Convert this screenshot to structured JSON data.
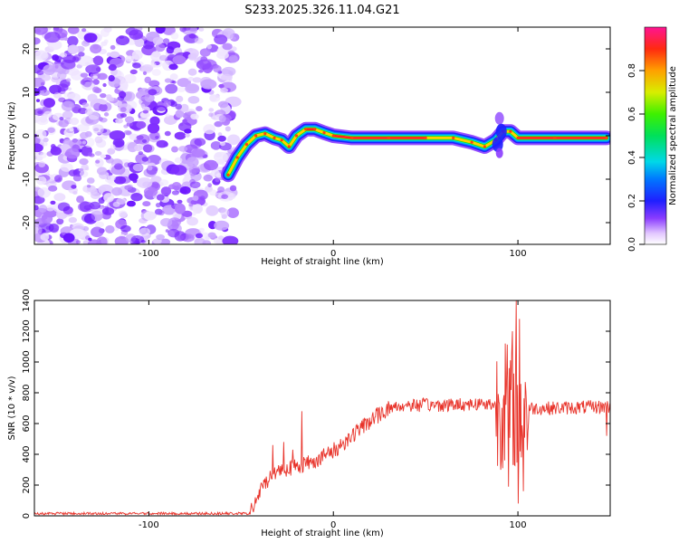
{
  "title": "S233.2025.326.11.04.G21",
  "chart_data": [
    {
      "type": "heatmap",
      "xlabel": "Height of straight line (km)",
      "ylabel": "Frequency (Hz)",
      "xlim": [
        -162,
        150
      ],
      "ylim": [
        -25,
        25
      ],
      "xticks": [
        -100,
        0,
        100
      ],
      "yticks": [
        -20,
        -10,
        0,
        10,
        20
      ],
      "colorbar": {
        "label": "Normalized spectral amplitude",
        "range": [
          0,
          1
        ],
        "ticks": [
          "0.0",
          "0.2",
          "0.4",
          "0.6",
          "0.8"
        ],
        "tick_values": [
          0,
          0.2,
          0.4,
          0.6,
          0.8
        ]
      },
      "noise_region_x": [
        -162,
        -57
      ],
      "ridge": [
        {
          "x": -57,
          "y": -9
        },
        {
          "x": -52,
          "y": -5
        },
        {
          "x": -47,
          "y": -2
        },
        {
          "x": -42,
          "y": 0
        },
        {
          "x": -37,
          "y": 0.5
        },
        {
          "x": -32,
          "y": -0.5
        },
        {
          "x": -28,
          "y": -1
        },
        {
          "x": -24,
          "y": -2.5
        },
        {
          "x": -20,
          "y": 0
        },
        {
          "x": -15,
          "y": 1.5
        },
        {
          "x": -10,
          "y": 1.5
        },
        {
          "x": -5,
          "y": 0.7
        },
        {
          "x": 0,
          "y": 0
        },
        {
          "x": 10,
          "y": -0.5
        },
        {
          "x": 30,
          "y": -0.5
        },
        {
          "x": 50,
          "y": -0.5
        },
        {
          "x": 65,
          "y": -0.5
        },
        {
          "x": 75,
          "y": -1.5
        },
        {
          "x": 82,
          "y": -2.5
        },
        {
          "x": 88,
          "y": -1
        },
        {
          "x": 92,
          "y": 1
        },
        {
          "x": 96,
          "y": 1
        },
        {
          "x": 100,
          "y": -0.5
        },
        {
          "x": 120,
          "y": -0.5
        },
        {
          "x": 148,
          "y": -0.5
        }
      ]
    },
    {
      "type": "line",
      "xlabel": "Height of straight line (km)",
      "ylabel": "SNR (10 * v/v)",
      "xlim": [
        -162,
        150
      ],
      "ylim": [
        0,
        1400
      ],
      "xticks": [
        -100,
        0,
        100
      ],
      "yticks": [
        0,
        200,
        400,
        600,
        800,
        1000,
        1200,
        1400
      ],
      "color": "#e8332a",
      "series_name": "SNR",
      "envelope": [
        {
          "x": -162,
          "y": 15
        },
        {
          "x": -45,
          "y": 15
        },
        {
          "x": -40,
          "y": 150
        },
        {
          "x": -35,
          "y": 250
        },
        {
          "x": -30,
          "y": 300
        },
        {
          "x": -20,
          "y": 320
        },
        {
          "x": -10,
          "y": 360
        },
        {
          "x": 0,
          "y": 420
        },
        {
          "x": 10,
          "y": 520
        },
        {
          "x": 20,
          "y": 620
        },
        {
          "x": 30,
          "y": 700
        },
        {
          "x": 40,
          "y": 720
        },
        {
          "x": 60,
          "y": 720
        },
        {
          "x": 80,
          "y": 730
        },
        {
          "x": 90,
          "y": 720
        },
        {
          "x": 100,
          "y": 700
        },
        {
          "x": 120,
          "y": 700
        },
        {
          "x": 150,
          "y": 710
        }
      ],
      "spikes": [
        {
          "x": -33,
          "y": 460
        },
        {
          "x": -27,
          "y": 480
        },
        {
          "x": -22,
          "y": 430
        },
        {
          "x": -17,
          "y": 680
        },
        {
          "x": 93,
          "y": 1120
        },
        {
          "x": 95,
          "y": 190
        },
        {
          "x": 97,
          "y": 1200
        },
        {
          "x": 99,
          "y": 1400
        },
        {
          "x": 100,
          "y": 80
        },
        {
          "x": 101,
          "y": 1280
        },
        {
          "x": 103,
          "y": 160
        },
        {
          "x": 148,
          "y": 520
        }
      ]
    }
  ]
}
